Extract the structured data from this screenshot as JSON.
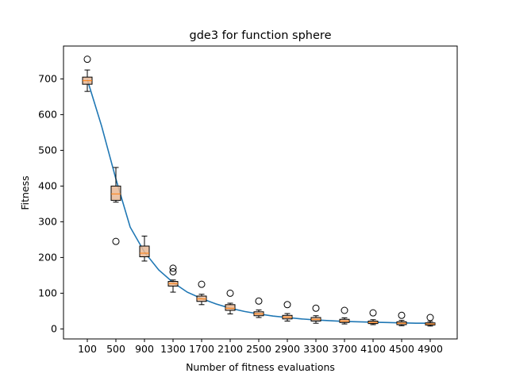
{
  "chart_data": {
    "type": "box",
    "title": "gde3 for function sphere",
    "xlabel": "Number of fitness evaluations",
    "ylabel": "Fitness",
    "ylim": [
      -28,
      792
    ],
    "yticks": [
      0,
      100,
      200,
      300,
      400,
      500,
      600,
      700
    ],
    "categories": [
      "100",
      "500",
      "900",
      "1300",
      "1700",
      "2100",
      "2500",
      "2900",
      "3300",
      "3700",
      "4100",
      "4500",
      "4900"
    ],
    "boxes": [
      {
        "x": 100,
        "whislo": 665,
        "q1": 685,
        "med": 695,
        "q3": 705,
        "whishi": 725,
        "fliers": [
          755
        ]
      },
      {
        "x": 500,
        "whislo": 355,
        "q1": 360,
        "med": 378,
        "q3": 400,
        "whishi": 452,
        "fliers": [
          245
        ]
      },
      {
        "x": 900,
        "whislo": 190,
        "q1": 202,
        "med": 212,
        "q3": 232,
        "whishi": 260,
        "fliers": []
      },
      {
        "x": 1300,
        "whislo": 103,
        "q1": 120,
        "med": 127,
        "q3": 133,
        "whishi": 137,
        "fliers": [
          160,
          170
        ]
      },
      {
        "x": 1700,
        "whislo": 68,
        "q1": 77,
        "med": 84,
        "q3": 92,
        "whishi": 97,
        "fliers": [
          125
        ]
      },
      {
        "x": 2100,
        "whislo": 42,
        "q1": 52,
        "med": 58,
        "q3": 68,
        "whishi": 72,
        "fliers": [
          100
        ]
      },
      {
        "x": 2500,
        "whislo": 32,
        "q1": 37,
        "med": 42,
        "q3": 48,
        "whishi": 53,
        "fliers": [
          78
        ]
      },
      {
        "x": 2900,
        "whislo": 22,
        "q1": 28,
        "med": 33,
        "q3": 38,
        "whishi": 43,
        "fliers": [
          68
        ]
      },
      {
        "x": 3300,
        "whislo": 16,
        "q1": 22,
        "med": 27,
        "q3": 32,
        "whishi": 37,
        "fliers": [
          58
        ]
      },
      {
        "x": 3700,
        "whislo": 14,
        "q1": 18,
        "med": 22,
        "q3": 27,
        "whishi": 31,
        "fliers": [
          52
        ]
      },
      {
        "x": 4100,
        "whislo": 12,
        "q1": 15,
        "med": 18,
        "q3": 22,
        "whishi": 26,
        "fliers": [
          45
        ]
      },
      {
        "x": 4500,
        "whislo": 9,
        "q1": 12,
        "med": 16,
        "q3": 20,
        "whishi": 24,
        "fliers": [
          38
        ]
      },
      {
        "x": 4900,
        "whislo": 8,
        "q1": 11,
        "med": 14,
        "q3": 17,
        "whishi": 21,
        "fliers": [
          32
        ]
      }
    ],
    "line": {
      "x": [
        100,
        300,
        500,
        700,
        900,
        1100,
        1300,
        1500,
        1700,
        1900,
        2100,
        2300,
        2500,
        2700,
        2900,
        3100,
        3300,
        3500,
        3700,
        3900,
        4100,
        4300,
        4500,
        4700,
        4900
      ],
      "y": [
        698,
        568,
        420,
        285,
        215,
        165,
        130,
        103,
        85,
        70,
        58,
        49,
        42,
        36,
        32,
        28,
        25,
        23,
        21,
        20,
        19,
        18,
        17,
        16,
        16
      ]
    },
    "colors": {
      "line": "#1f77b4",
      "box_fill": "#e8b896",
      "median": "#ff7f0e",
      "edge": "#000000"
    },
    "grid": false,
    "legend": "none"
  }
}
